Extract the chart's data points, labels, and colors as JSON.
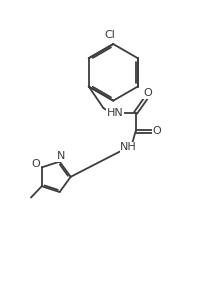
{
  "bg_color": "#ffffff",
  "line_color": "#3d3d3d",
  "text_color": "#3d3d3d",
  "lw": 1.3,
  "fs": 8.0,
  "figsize": [
    2.05,
    2.97
  ],
  "dpi": 100,
  "xlim": [
    0,
    10.5
  ],
  "ylim": [
    0,
    15.2
  ]
}
